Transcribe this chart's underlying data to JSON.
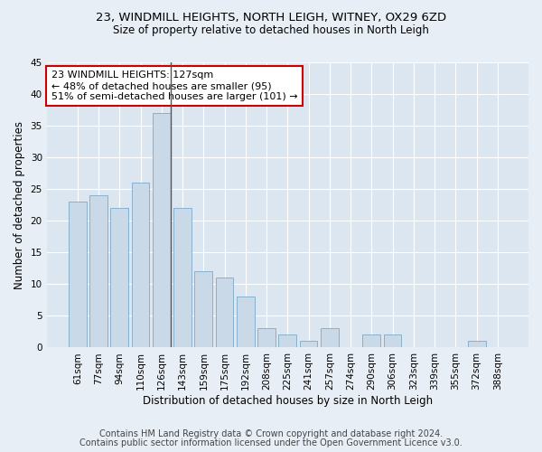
{
  "title": "23, WINDMILL HEIGHTS, NORTH LEIGH, WITNEY, OX29 6ZD",
  "subtitle": "Size of property relative to detached houses in North Leigh",
  "xlabel": "Distribution of detached houses by size in North Leigh",
  "ylabel": "Number of detached properties",
  "bar_labels": [
    "61sqm",
    "77sqm",
    "94sqm",
    "110sqm",
    "126sqm",
    "143sqm",
    "159sqm",
    "175sqm",
    "192sqm",
    "208sqm",
    "225sqm",
    "241sqm",
    "257sqm",
    "274sqm",
    "290sqm",
    "306sqm",
    "323sqm",
    "339sqm",
    "355sqm",
    "372sqm",
    "388sqm"
  ],
  "bar_values": [
    23,
    24,
    22,
    26,
    37,
    22,
    12,
    11,
    8,
    3,
    2,
    1,
    3,
    0,
    2,
    2,
    0,
    0,
    0,
    1,
    0
  ],
  "bar_color": "#c9d9e8",
  "bar_edge_color": "#7aaac8",
  "highlight_bar_index": 4,
  "highlight_line_color": "#555555",
  "annotation_text": "23 WINDMILL HEIGHTS: 127sqm\n← 48% of detached houses are smaller (95)\n51% of semi-detached houses are larger (101) →",
  "annotation_box_color": "#ffffff",
  "annotation_box_edge_color": "#cc0000",
  "ylim": [
    0,
    45
  ],
  "yticks": [
    0,
    5,
    10,
    15,
    20,
    25,
    30,
    35,
    40,
    45
  ],
  "background_color": "#e8eef5",
  "plot_background_color": "#dce6f0",
  "grid_color": "#ffffff",
  "footer_line1": "Contains HM Land Registry data © Crown copyright and database right 2024.",
  "footer_line2": "Contains public sector information licensed under the Open Government Licence v3.0.",
  "title_fontsize": 9.5,
  "subtitle_fontsize": 8.5,
  "xlabel_fontsize": 8.5,
  "ylabel_fontsize": 8.5,
  "tick_fontsize": 7.5,
  "annotation_fontsize": 8,
  "footer_fontsize": 7
}
